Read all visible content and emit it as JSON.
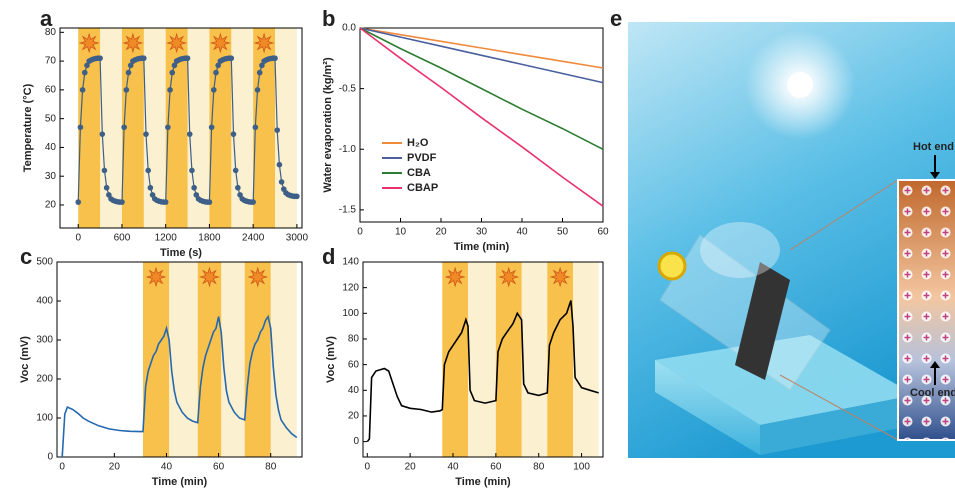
{
  "chart_data": [
    {
      "type": "line",
      "panel_label": "a",
      "x_label": "Time (s)",
      "y_label": "Temperature (°C)",
      "markers": true,
      "xlim": [
        -250,
        3070
      ],
      "ylim": [
        12,
        81.5
      ],
      "xticks": [
        0,
        600,
        1200,
        1800,
        2400,
        3000
      ],
      "yticks": [
        20,
        30,
        40,
        50,
        60,
        70,
        80
      ],
      "light_on": [
        [
          0,
          300
        ],
        [
          600,
          900
        ],
        [
          1200,
          1500
        ],
        [
          1800,
          2100
        ],
        [
          2400,
          2700
        ]
      ],
      "light_off": [
        [
          300,
          600
        ],
        [
          900,
          1200
        ],
        [
          1500,
          1800
        ],
        [
          2100,
          2400
        ],
        [
          2700,
          3000
        ]
      ],
      "x": [
        0,
        30,
        60,
        90,
        120,
        150,
        180,
        210,
        240,
        270,
        300,
        330,
        360,
        390,
        420,
        450,
        480,
        510,
        540,
        570,
        600,
        630,
        660,
        690,
        720,
        750,
        780,
        810,
        840,
        870,
        900,
        930,
        960,
        990,
        1020,
        1050,
        1080,
        1110,
        1140,
        1170,
        1200,
        1230,
        1260,
        1290,
        1320,
        1350,
        1380,
        1410,
        1440,
        1470,
        1500,
        1530,
        1560,
        1590,
        1620,
        1650,
        1680,
        1710,
        1740,
        1770,
        1800,
        1830,
        1860,
        1890,
        1920,
        1950,
        1980,
        2010,
        2040,
        2070,
        2100,
        2130,
        2160,
        2190,
        2220,
        2250,
        2280,
        2310,
        2340,
        2370,
        2400,
        2430,
        2460,
        2490,
        2520,
        2550,
        2580,
        2610,
        2640,
        2670,
        2700,
        2730,
        2760,
        2790,
        2820,
        2850,
        2880,
        2910,
        2940,
        2970,
        3000
      ],
      "series": [
        {
          "color": "#3d5f88",
          "values": [
            21,
            47,
            60,
            66,
            68.5,
            70,
            70.4,
            70.7,
            70.9,
            71,
            71,
            44.6,
            32,
            26,
            23.5,
            22.1,
            21.6,
            21.3,
            21.1,
            21,
            21,
            47,
            60,
            66,
            68.5,
            70,
            70.4,
            70.7,
            70.9,
            71,
            71,
            44.6,
            32,
            26,
            23.5,
            22.1,
            21.6,
            21.3,
            21.1,
            21,
            21,
            47,
            60,
            66,
            68.5,
            70,
            70.4,
            70.7,
            70.9,
            71,
            71,
            44.6,
            32,
            26,
            23.5,
            22.1,
            21.6,
            21.3,
            21.1,
            21,
            21,
            47,
            60,
            66,
            68.5,
            70,
            70.4,
            70.7,
            70.9,
            71,
            71,
            44.6,
            32,
            26,
            23.5,
            22.1,
            21.6,
            21.3,
            21.1,
            21,
            21,
            47,
            60,
            66,
            68.5,
            70,
            70.4,
            70.7,
            70.9,
            71,
            71,
            46,
            34,
            28,
            25.5,
            24.2,
            23.6,
            23.3,
            23.1,
            23,
            23
          ]
        }
      ]
    },
    {
      "type": "line",
      "panel_label": "b",
      "x_label": "Time (min)",
      "y_label": "Water evaporation (kg/m²)",
      "markers": false,
      "xlim": [
        0,
        60
      ],
      "ylim": [
        -1.6,
        0
      ],
      "xticks": [
        0,
        10,
        20,
        30,
        40,
        50,
        60
      ],
      "yticks": [
        {
          "value": 0,
          "label": "0.0"
        },
        -0.5,
        {
          "value": -1,
          "label": "-1.0"
        },
        -1.5
      ],
      "x": [
        0,
        10,
        20,
        30,
        40,
        50,
        60
      ],
      "series": [
        {
          "name": "H₂O",
          "color": "#f08a3c",
          "values": [
            0,
            -0.055,
            -0.11,
            -0.165,
            -0.22,
            -0.275,
            -0.33
          ]
        },
        {
          "name": "PVDF",
          "color": "#4a5f9e",
          "values": [
            0,
            -0.075,
            -0.15,
            -0.225,
            -0.3,
            -0.375,
            -0.45
          ]
        },
        {
          "name": "CBA",
          "color": "#2e7d32",
          "values": [
            0,
            -0.17,
            -0.33,
            -0.5,
            -0.67,
            -0.83,
            -1.0
          ]
        },
        {
          "name": "CBAP",
          "color": "#e8336d",
          "values": [
            0,
            -0.25,
            -0.49,
            -0.74,
            -0.98,
            -1.23,
            -1.47
          ]
        }
      ]
    },
    {
      "type": "line",
      "panel_label": "c",
      "x_label": "Time (min)",
      "y_label": "Voc (mV)",
      "markers": false,
      "xlim": [
        -2,
        92
      ],
      "ylim": [
        0,
        500
      ],
      "xticks": [
        0,
        20,
        40,
        60,
        80
      ],
      "yticks": [
        0,
        100,
        200,
        300,
        400,
        500
      ],
      "light_on": [
        [
          31,
          41
        ],
        [
          52,
          61
        ],
        [
          70,
          80
        ]
      ],
      "light_off": [
        [
          41,
          52
        ],
        [
          61,
          70
        ],
        [
          80,
          90
        ]
      ],
      "x": [
        0,
        1,
        2,
        4,
        6,
        8,
        10,
        14,
        18,
        22,
        26,
        30,
        31,
        32,
        33,
        34,
        35,
        36,
        37,
        38,
        39,
        40,
        41,
        42,
        43,
        44,
        46,
        48,
        50,
        52,
        53,
        54,
        55,
        56,
        57,
        58,
        59,
        60,
        61,
        62,
        63,
        64,
        66,
        68,
        70,
        71,
        72,
        73,
        74,
        75,
        76,
        77,
        78,
        79,
        80,
        81,
        82,
        83,
        84,
        86,
        88,
        90
      ],
      "series": [
        {
          "color": "#2468b0",
          "values": [
            0,
            110,
            128,
            122,
            112,
            100,
            92,
            80,
            72,
            68,
            66,
            65,
            65,
            180,
            220,
            240,
            260,
            270,
            290,
            300,
            310,
            330,
            300,
            220,
            170,
            140,
            115,
            100,
            92,
            88,
            180,
            230,
            260,
            280,
            300,
            320,
            330,
            360,
            320,
            230,
            170,
            140,
            115,
            100,
            95,
            180,
            240,
            270,
            290,
            300,
            320,
            330,
            350,
            360,
            330,
            230,
            160,
            120,
            95,
            75,
            60,
            50
          ]
        }
      ]
    },
    {
      "type": "line",
      "panel_label": "d",
      "x_label": "Time (min)",
      "y_label": "Voc (mV)",
      "markers": false,
      "xlim": [
        -2,
        110
      ],
      "ylim": [
        -12,
        140
      ],
      "xticks": [
        0,
        20,
        40,
        60,
        80,
        100
      ],
      "yticks": [
        0,
        20,
        40,
        60,
        80,
        100,
        120,
        140
      ],
      "light_on": [
        [
          35,
          47
        ],
        [
          60,
          72
        ],
        [
          84,
          96
        ]
      ],
      "light_off": [
        [
          47,
          60
        ],
        [
          72,
          84
        ],
        [
          96,
          108
        ]
      ],
      "x": [
        0,
        1,
        2,
        4,
        8,
        10,
        12,
        14,
        16,
        20,
        25,
        30,
        34,
        35,
        36,
        38,
        40,
        42,
        44,
        46,
        47,
        48,
        50,
        55,
        60,
        61,
        63,
        65,
        68,
        70,
        72,
        73,
        75,
        80,
        84,
        85,
        87,
        90,
        93,
        95,
        96,
        97,
        100,
        104,
        108
      ],
      "series": [
        {
          "color": "#000000",
          "values": [
            0,
            2,
            50,
            55,
            57,
            55,
            45,
            35,
            28,
            26,
            25,
            23,
            24,
            25,
            60,
            70,
            75,
            80,
            85,
            95,
            90,
            40,
            32,
            30,
            32,
            70,
            80,
            85,
            92,
            100,
            95,
            45,
            38,
            36,
            38,
            75,
            85,
            95,
            100,
            110,
            90,
            50,
            42,
            40,
            38
          ]
        }
      ]
    }
  ],
  "illustration": {
    "panel_label": "e",
    "hot_end": "Hot end",
    "cool_end": "Cool end"
  }
}
